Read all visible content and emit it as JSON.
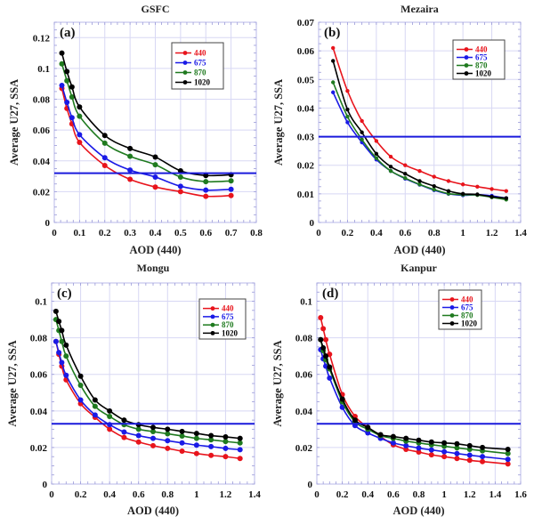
{
  "chart_data": [
    {
      "type": "line",
      "panel_label": "(a)",
      "title": "GSFC",
      "xlabel": "AOD (440)",
      "ylabel": "Average U27, SSA",
      "xlim": [
        0,
        0.8
      ],
      "ylim": [
        0,
        0.13
      ],
      "xticks": [
        0,
        0.1,
        0.2,
        0.3,
        0.4,
        0.5,
        0.6,
        0.7,
        0.8
      ],
      "xtick_labels": [
        "0",
        "0.1",
        "0.2",
        "0.3",
        "0.4",
        "0.5",
        "0.6",
        "0.7",
        "0.8"
      ],
      "yticks": [
        0,
        0.02,
        0.04,
        0.06,
        0.08,
        0.1,
        0.12
      ],
      "ytick_labels": [
        "0",
        "0.02",
        "0.04",
        "0.06",
        "0.08",
        "0.1",
        "0.12"
      ],
      "grid": true,
      "legend_position": "top-right",
      "reference_line": {
        "y": 0.032,
        "color": "#1a1adc"
      },
      "x": [
        0.03,
        0.05,
        0.07,
        0.1,
        0.2,
        0.3,
        0.4,
        0.5,
        0.6,
        0.7
      ],
      "series": [
        {
          "name": "440",
          "color": "#e8141c",
          "values": [
            0.087,
            0.074,
            0.064,
            0.052,
            0.037,
            0.028,
            0.023,
            0.02,
            0.017,
            0.0175
          ]
        },
        {
          "name": "675",
          "color": "#1a1ae6",
          "values": [
            0.089,
            0.078,
            0.068,
            0.057,
            0.042,
            0.034,
            0.0295,
            0.0235,
            0.021,
            0.0215
          ]
        },
        {
          "name": "870",
          "color": "#1f7a1f",
          "values": [
            0.103,
            0.092,
            0.0815,
            0.069,
            0.0515,
            0.043,
            0.0375,
            0.0295,
            0.0265,
            0.027
          ]
        },
        {
          "name": "1020",
          "color": "#000000",
          "values": [
            0.11,
            0.098,
            0.088,
            0.075,
            0.0565,
            0.048,
            0.0425,
            0.0335,
            0.0305,
            0.031
          ]
        }
      ]
    },
    {
      "type": "line",
      "panel_label": "(b)",
      "title": "Mezaira",
      "xlabel": "AOD (440)",
      "ylabel": "Average U27, SSA",
      "xlim": [
        0,
        1.4
      ],
      "ylim": [
        0,
        0.07
      ],
      "xticks": [
        0,
        0.2,
        0.4,
        0.6,
        0.8,
        1,
        1.2,
        1.4
      ],
      "xtick_labels": [
        "0",
        "0.2",
        "0.4",
        "0.6",
        "0.8",
        "1",
        "1.2",
        "1.4"
      ],
      "yticks": [
        0,
        0.01,
        0.02,
        0.03,
        0.04,
        0.05,
        0.06,
        0.07
      ],
      "ytick_labels": [
        "0",
        "0.01",
        "0.02",
        "0.03",
        "0.04",
        "0.05",
        "0.06",
        "0.07"
      ],
      "grid": true,
      "legend_position": "top-right",
      "reference_line": {
        "y": 0.03,
        "color": "#1a1adc"
      },
      "x": [
        0.1,
        0.2,
        0.3,
        0.4,
        0.5,
        0.6,
        0.7,
        0.8,
        0.9,
        1.0,
        1.1,
        1.2,
        1.3
      ],
      "series": [
        {
          "name": "440",
          "color": "#e8141c",
          "values": [
            0.061,
            0.046,
            0.0355,
            0.0285,
            0.023,
            0.02,
            0.018,
            0.016,
            0.0145,
            0.0133,
            0.0125,
            0.0117,
            0.011
          ]
        },
        {
          "name": "675",
          "color": "#1a1ae6",
          "values": [
            0.0455,
            0.035,
            0.028,
            0.022,
            0.018,
            0.0153,
            0.0132,
            0.0113,
            0.01,
            0.0095,
            0.0097,
            0.0093,
            0.0085
          ]
        },
        {
          "name": "870",
          "color": "#1f7a1f",
          "values": [
            0.049,
            0.037,
            0.029,
            0.0225,
            0.018,
            0.0155,
            0.0133,
            0.0115,
            0.0101,
            0.0097,
            0.0096,
            0.0088,
            0.008
          ]
        },
        {
          "name": "1020",
          "color": "#000000",
          "values": [
            0.0565,
            0.0395,
            0.0315,
            0.024,
            0.0195,
            0.017,
            0.0145,
            0.0127,
            0.011,
            0.01,
            0.0098,
            0.009,
            0.0085
          ]
        }
      ]
    },
    {
      "type": "line",
      "panel_label": "(c)",
      "title": "Mongu",
      "xlabel": "AOD (440)",
      "ylabel": "Average U27, SSA",
      "xlim": [
        0,
        1.4
      ],
      "ylim": [
        0,
        0.11
      ],
      "xticks": [
        0,
        0.2,
        0.4,
        0.6,
        0.8,
        1,
        1.2,
        1.4
      ],
      "xtick_labels": [
        "0",
        "0.2",
        "0.4",
        "0.6",
        "0.8",
        "1",
        "1.2",
        "1.4"
      ],
      "yticks": [
        0,
        0.02,
        0.04,
        0.06,
        0.08,
        0.1
      ],
      "ytick_labels": [
        "0",
        "0.02",
        "0.04",
        "0.06",
        "0.08",
        "0.1"
      ],
      "grid": true,
      "legend_position": "top-right",
      "reference_line": {
        "y": 0.033,
        "color": "#1a1adc"
      },
      "x": [
        0.03,
        0.05,
        0.07,
        0.1,
        0.2,
        0.3,
        0.4,
        0.5,
        0.6,
        0.7,
        0.8,
        0.9,
        1.0,
        1.1,
        1.2,
        1.3
      ],
      "series": [
        {
          "name": "440",
          "color": "#e8141c",
          "values": [
            0.078,
            0.071,
            0.0645,
            0.057,
            0.044,
            0.0365,
            0.03,
            0.0255,
            0.023,
            0.021,
            0.0195,
            0.018,
            0.0167,
            0.0157,
            0.015,
            0.014
          ]
        },
        {
          "name": "675",
          "color": "#1a1ae6",
          "values": [
            0.078,
            0.072,
            0.0665,
            0.0595,
            0.046,
            0.0378,
            0.0325,
            0.0285,
            0.0265,
            0.025,
            0.0237,
            0.0225,
            0.0213,
            0.0205,
            0.0195,
            0.0188
          ]
        },
        {
          "name": "870",
          "color": "#1f7a1f",
          "values": [
            0.09,
            0.084,
            0.078,
            0.07,
            0.054,
            0.0425,
            0.037,
            0.0325,
            0.03,
            0.0287,
            0.0275,
            0.0263,
            0.025,
            0.0242,
            0.0233,
            0.0225
          ]
        },
        {
          "name": "1020",
          "color": "#000000",
          "values": [
            0.0945,
            0.089,
            0.084,
            0.076,
            0.059,
            0.046,
            0.04,
            0.035,
            0.0325,
            0.031,
            0.03,
            0.0288,
            0.0277,
            0.0265,
            0.0258,
            0.025
          ]
        }
      ]
    },
    {
      "type": "line",
      "panel_label": "(d)",
      "title": "Kanpur",
      "xlabel": "AOD (440)",
      "ylabel": "Average U27, SSA",
      "xlim": [
        0,
        1.6
      ],
      "ylim": [
        0,
        0.11
      ],
      "xticks": [
        0,
        0.2,
        0.4,
        0.6,
        0.8,
        1,
        1.2,
        1.4,
        1.6
      ],
      "xtick_labels": [
        "0",
        "0.2",
        "0.4",
        "0.6",
        "0.8",
        "1",
        "1.2",
        "1.4",
        "1.6"
      ],
      "yticks": [
        0,
        0.02,
        0.04,
        0.06,
        0.08,
        0.1
      ],
      "ytick_labels": [
        "0",
        "0.02",
        "0.04",
        "0.06",
        "0.08",
        "0.1"
      ],
      "grid": true,
      "legend_position": "top-right",
      "reference_line": {
        "y": 0.033,
        "color": "#1a1adc"
      },
      "x": [
        0.03,
        0.05,
        0.07,
        0.1,
        0.2,
        0.3,
        0.4,
        0.5,
        0.6,
        0.7,
        0.8,
        0.9,
        1.0,
        1.1,
        1.2,
        1.3,
        1.5
      ],
      "series": [
        {
          "name": "440",
          "color": "#e8141c",
          "values": [
            0.091,
            0.085,
            0.079,
            0.071,
            0.049,
            0.037,
            0.031,
            0.026,
            0.0215,
            0.019,
            0.0175,
            0.016,
            0.015,
            0.014,
            0.013,
            0.0123,
            0.011
          ]
        },
        {
          "name": "675",
          "color": "#1a1ae6",
          "values": [
            0.0735,
            0.0685,
            0.0645,
            0.058,
            0.042,
            0.032,
            0.028,
            0.025,
            0.0225,
            0.021,
            0.0197,
            0.0187,
            0.0177,
            0.0167,
            0.0158,
            0.015,
            0.0135
          ]
        },
        {
          "name": "870",
          "color": "#1f7a1f",
          "values": [
            0.079,
            0.073,
            0.068,
            0.063,
            0.045,
            0.034,
            0.03,
            0.0265,
            0.025,
            0.0235,
            0.0225,
            0.0215,
            0.0207,
            0.0198,
            0.019,
            0.0182,
            0.0167
          ]
        },
        {
          "name": "1020",
          "color": "#000000",
          "values": [
            0.079,
            0.0745,
            0.07,
            0.064,
            0.0465,
            0.035,
            0.031,
            0.027,
            0.026,
            0.025,
            0.024,
            0.023,
            0.0225,
            0.022,
            0.021,
            0.02,
            0.019
          ]
        }
      ]
    }
  ]
}
